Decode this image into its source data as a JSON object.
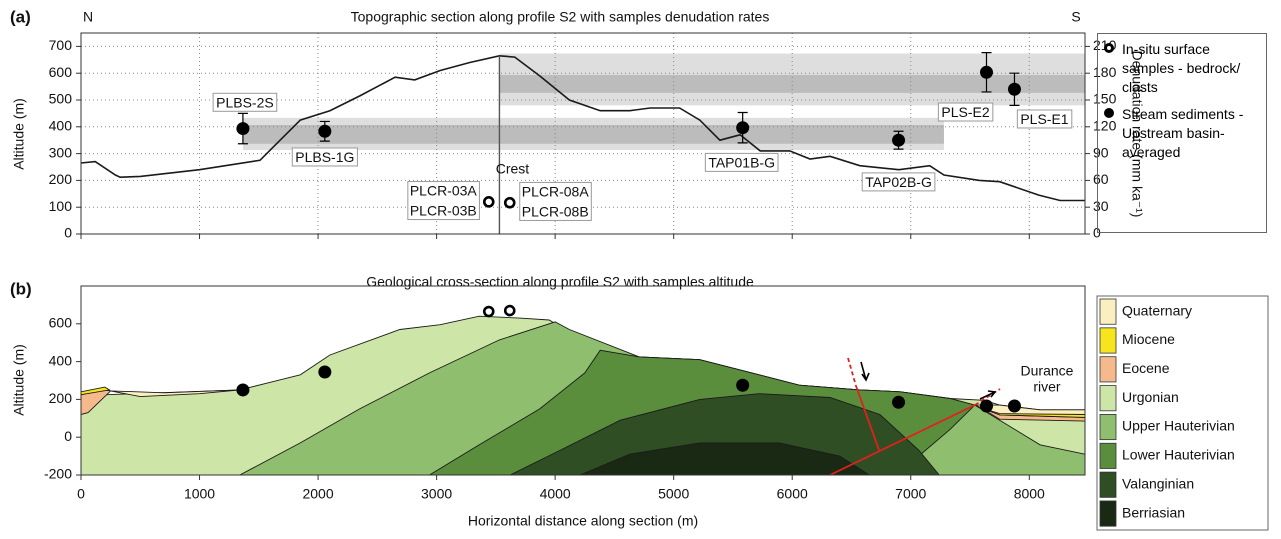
{
  "chart_data": [
    {
      "type": "line",
      "panel_label": "(a)",
      "title": "Topographic section along profile S2 with samples denudation rates",
      "directions": [
        "N",
        "S"
      ],
      "ylabel": "Altitude (m)",
      "y2label": "Denudation rate (mm ka⁻¹)",
      "xlim": [
        0,
        8470
      ],
      "ylim": [
        0,
        750
      ],
      "yticks": [
        0,
        100,
        200,
        300,
        400,
        500,
        600,
        700
      ],
      "y2lim": [
        0,
        225
      ],
      "y2ticks": [
        0,
        30,
        60,
        90,
        120,
        150,
        180,
        210
      ],
      "grid": true,
      "profile": {
        "color": "#1a1a1a",
        "x": [
          0,
          120,
          290,
          330,
          500,
          1000,
          1510,
          1680,
          1850,
          2100,
          2350,
          2650,
          2815,
          3030,
          3280,
          3530,
          3660,
          3870,
          4120,
          4380,
          4630,
          4800,
          5050,
          5220,
          5390,
          5560,
          5730,
          5980,
          6150,
          6320,
          6570,
          6900,
          7160,
          7280,
          7580,
          7750,
          8080,
          8260,
          8470
        ],
        "values": [
          265,
          270,
          220,
          212,
          215,
          240,
          275,
          350,
          425,
          460,
          515,
          585,
          575,
          610,
          640,
          665,
          660,
          590,
          500,
          460,
          460,
          470,
          470,
          425,
          350,
          370,
          310,
          310,
          280,
          290,
          255,
          240,
          255,
          220,
          200,
          195,
          145,
          125,
          125
        ]
      },
      "crest": {
        "x": 3530,
        "label": "Crest"
      },
      "bands": [
        {
          "x": [
            1366,
            7280
          ],
          "outer": [
            94,
            130
          ],
          "inner": [
            101,
            122
          ],
          "outer_color": "#dedede",
          "inner_color": "#bcbcbc"
        },
        {
          "x": [
            3530,
            8470
          ],
          "outer": [
            144,
            202
          ],
          "inner": [
            158,
            178
          ],
          "outer_color": "#dedede",
          "inner_color": "#bcbcbc"
        }
      ],
      "series": [
        {
          "name": "In-situ surface samples - bedrock/ clasts",
          "marker": "open",
          "color": "#000000",
          "axis": "y2",
          "x": [
            3440,
            3617
          ],
          "values": [
            36,
            35
          ],
          "labels": [
            [
              "PLCR-03A",
              "PLCR-03B"
            ],
            [
              "PLCR-08A",
              "PLCR-08B"
            ]
          ]
        },
        {
          "name": "Stream sediments - Upstream basin-averaged",
          "marker": "filled",
          "color": "#000000",
          "axis": "y2",
          "x": [
            1366,
            2057,
            5582,
            6897,
            7639,
            7875
          ],
          "values": [
            118,
            115,
            119,
            105,
            181,
            162
          ],
          "errors": [
            17,
            11,
            17,
            10,
            22,
            18
          ],
          "labels": [
            "PLBS-2S",
            "PLBS-1G",
            "TAP01B-G",
            "TAP02B-G",
            "PLS-E2",
            "PLS-E1"
          ]
        }
      ]
    },
    {
      "type": "area",
      "panel_label": "(b)",
      "title": "Geological cross-section along profile S2 with samples altitude",
      "xlabel": "Horizontal distance along section (m)",
      "ylabel": "Altitude (m)",
      "xlim": [
        0,
        8470
      ],
      "ylim": [
        -200,
        800
      ],
      "xticks": [
        0,
        1000,
        2000,
        3000,
        4000,
        5000,
        6000,
        7000,
        8000
      ],
      "yticks": [
        -200,
        0,
        200,
        400,
        600
      ],
      "grid": false,
      "annotation": [
        "Durance",
        "river"
      ],
      "layers": [
        {
          "name": "Quaternary",
          "color": "#fbefc0",
          "shapes": [
            {
              "x": [
                250,
                700,
                1340,
                1000,
                500
              ],
              "y": [
                245,
                235,
                250,
                230,
                215
              ]
            },
            {
              "x": [
                7540,
                7750,
                8090,
                8470,
                8470,
                7750,
                7620
              ],
              "y": [
                170,
                170,
                145,
                145,
                120,
                125,
                150
              ]
            }
          ]
        },
        {
          "name": "Miocene",
          "color": "#f6e41c",
          "shapes": [
            {
              "x": [
                0,
                200,
                240,
                0
              ],
              "y": [
                240,
                265,
                250,
                225
              ]
            },
            {
              "x": [
                7660,
                8470,
                8470,
                7750
              ],
              "y": [
                140,
                120,
                105,
                118
              ]
            }
          ]
        },
        {
          "name": "Eocene",
          "color": "#f6b98b",
          "shapes": [
            {
              "x": [
                0,
                200,
                250,
                60,
                0
              ],
              "y": [
                225,
                250,
                245,
                130,
                120
              ]
            },
            {
              "x": [
                7620,
                7750,
                8470,
                8470,
                7750,
                7660
              ],
              "y": [
                150,
                118,
                105,
                85,
                95,
                130
              ]
            }
          ]
        },
        {
          "name": "Urgonian",
          "color": "#cde6a8",
          "shapes": [
            {
              "x": [
                0,
                1340,
                1850,
                2100,
                2690,
                3030,
                3360,
                3700,
                3950,
                4080,
                4380,
                4710,
                5220,
                5720,
                6060,
                6570,
                6910,
                7330,
                7620,
                7750,
                8090,
                8470,
                8470,
                0
              ],
              "y": [
                220,
                250,
                330,
                435,
                570,
                595,
                640,
                630,
                620,
                570,
                460,
                425,
                410,
                330,
                275,
                250,
                240,
                205,
                195,
                170,
                145,
                145,
                -200,
                -200
              ]
            }
          ]
        },
        {
          "name": "Upper Hauterivian",
          "color": "#8fbe6e",
          "shapes": [
            {
              "x": [
                1340,
                1850,
                2350,
                2940,
                3530,
                4000,
                4120,
                4710,
                5220,
                5720,
                6060,
                6570,
                6910,
                7330,
                7540,
                7750,
                8090,
                8470,
                8470
              ],
              "y": [
                -200,
                -30,
                150,
                340,
                515,
                610,
                570,
                425,
                410,
                330,
                275,
                250,
                240,
                205,
                170,
                90,
                -40,
                -90,
                -200
              ]
            }
          ]
        },
        {
          "name": "Lower Hauterivian",
          "color": "#5a8e3d",
          "shapes": [
            {
              "x": [
                2940,
                3360,
                3870,
                4250,
                4380,
                4710,
                5220,
                5720,
                6060,
                6570,
                6910,
                7330,
                7540,
                7330,
                7030,
                6860
              ],
              "y": [
                -200,
                -40,
                150,
                340,
                460,
                425,
                410,
                330,
                275,
                250,
                240,
                205,
                170,
                40,
                -120,
                -200
              ]
            }
          ]
        },
        {
          "name": "Valanginian",
          "color": "#2f4e24",
          "shapes": [
            {
              "x": [
                3620,
                4040,
                4550,
                5220,
                5720,
                6320,
                6740,
                7070,
                7240
              ],
              "y": [
                -200,
                -70,
                90,
                200,
                230,
                210,
                120,
                -70,
                -200
              ]
            }
          ]
        },
        {
          "name": "Berriasian",
          "color": "#1a2914",
          "shapes": [
            {
              "x": [
                4210,
                4630,
                5220,
                5890,
                6400,
                6650
              ],
              "y": [
                -200,
                -90,
                -30,
                -30,
                -100,
                -200
              ]
            }
          ]
        }
      ],
      "series": [
        {
          "marker": "open",
          "color": "#000000",
          "x": [
            3440,
            3617
          ],
          "values": [
            665,
            670
          ]
        },
        {
          "marker": "filled",
          "color": "#000000",
          "x": [
            1366,
            2057,
            5582,
            6897,
            7639,
            7875
          ],
          "values": [
            250,
            345,
            275,
            185,
            165,
            165
          ]
        }
      ]
    }
  ]
}
